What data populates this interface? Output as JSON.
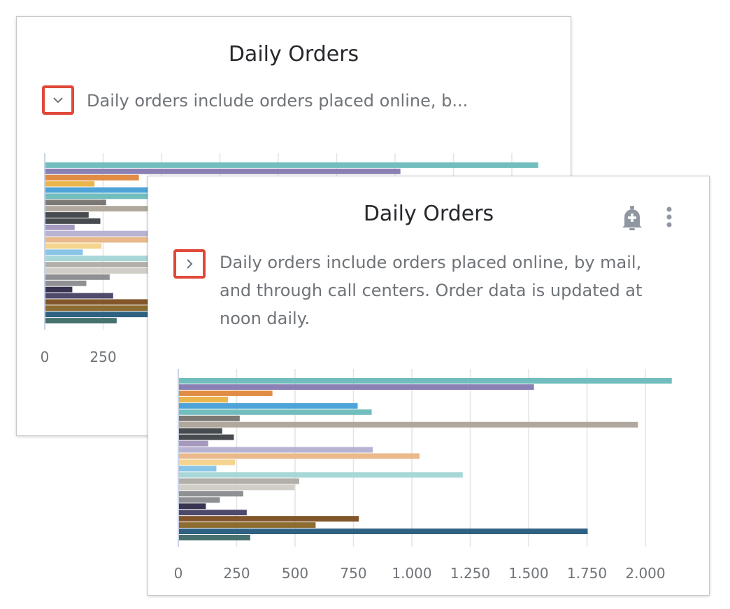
{
  "back_card": {
    "title": "Daily Orders",
    "toggle_icon": "chevron-down-icon",
    "description": "Daily orders include orders placed online, b..."
  },
  "front_card": {
    "title": "Daily Orders",
    "toggle_icon": "chevron-right-icon",
    "description": "Daily orders include orders placed online, by mail, and through call centers. Order data is updated at noon daily.",
    "actions": [
      "bell-plus-icon",
      "more-vertical-icon"
    ]
  },
  "accent_color": "#e0483a",
  "chart_data": {
    "type": "bar",
    "orientation": "horizontal",
    "values": [
      2110,
      1520,
      400,
      210,
      765,
      825,
      260,
      1965,
      185,
      235,
      125,
      830,
      1030,
      240,
      160,
      1215,
      515,
      495,
      275,
      175,
      115,
      290,
      770,
      585,
      1750,
      305
    ],
    "colors": [
      "#72bdbd",
      "#8a80b4",
      "#e08c45",
      "#ebb54e",
      "#4ea4d9",
      "#72bdbd",
      "#7c7876",
      "#b0a89c",
      "#474b50",
      "#474b50",
      "#a599bd",
      "#b8b3d3",
      "#eab98b",
      "#f5d48f",
      "#89c5e6",
      "#a7d7d7",
      "#b2aeaa",
      "#d1cec8",
      "#8f9093",
      "#8f9093",
      "#393452",
      "#4e4a6b",
      "#82552b",
      "#8c6c30",
      "#2e6182",
      "#46716f"
    ],
    "xlim": [
      0,
      2110
    ],
    "xticks": [
      "0",
      "250",
      "500",
      "750",
      "1.000",
      "1.250",
      "1.500",
      "1.750",
      "2.000"
    ],
    "xtick_values": [
      0,
      250,
      500,
      750,
      1000,
      1250,
      1500,
      1750,
      2000
    ],
    "grid": true
  }
}
